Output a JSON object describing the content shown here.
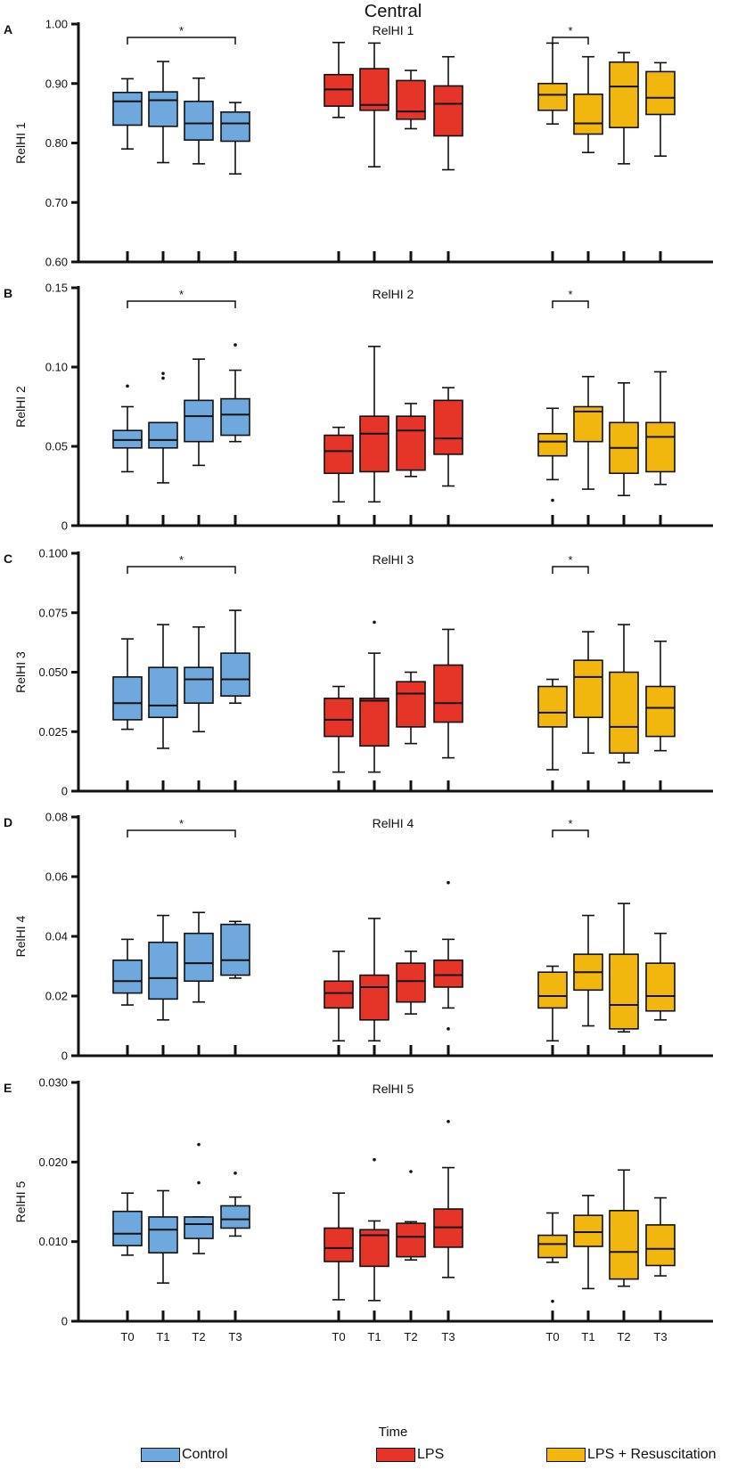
{
  "figure_title": "Central",
  "xlabel": "Time",
  "colors": {
    "control": "#6fa8dc",
    "lps": "#e53529",
    "lps_resus": "#f2b70f",
    "axis": "#111111"
  },
  "legend": [
    {
      "key": "control",
      "label": "Control"
    },
    {
      "key": "lps",
      "label": "LPS"
    },
    {
      "key": "lps_resus",
      "label": "LPS + Resuscitation"
    }
  ],
  "chart_data": [
    {
      "type": "box",
      "panel": "A",
      "title": "RelHI 1",
      "ylabel": "RelHI 1",
      "ylim": [
        0.6,
        1.0
      ],
      "yticks": [
        0.6,
        0.7,
        0.8,
        0.9,
        1.0
      ],
      "ytick_labels": [
        "0.60",
        "0.70",
        "0.80",
        "0.90",
        "1.00"
      ],
      "categories": [
        "T0",
        "T1",
        "T2",
        "T3"
      ],
      "significance": [
        {
          "group": "Control",
          "from": "T0",
          "to": "T3",
          "label": "*"
        },
        {
          "group": "LPS + Resuscitation",
          "from": "T0",
          "to": "T1",
          "label": "*"
        }
      ],
      "groups": [
        {
          "name": "Control",
          "color_key": "control",
          "boxes": [
            {
              "cat": "T0",
              "min": 0.79,
              "q1": 0.83,
              "median": 0.87,
              "q3": 0.885,
              "max": 0.908,
              "outliers": []
            },
            {
              "cat": "T1",
              "min": 0.767,
              "q1": 0.828,
              "median": 0.872,
              "q3": 0.886,
              "max": 0.937,
              "outliers": []
            },
            {
              "cat": "T2",
              "min": 0.765,
              "q1": 0.805,
              "median": 0.833,
              "q3": 0.87,
              "max": 0.909,
              "outliers": []
            },
            {
              "cat": "T3",
              "min": 0.748,
              "q1": 0.803,
              "median": 0.833,
              "q3": 0.852,
              "max": 0.868,
              "outliers": []
            }
          ]
        },
        {
          "name": "LPS",
          "color_key": "lps",
          "boxes": [
            {
              "cat": "T0",
              "min": 0.843,
              "q1": 0.862,
              "median": 0.89,
              "q3": 0.915,
              "max": 0.969,
              "outliers": []
            },
            {
              "cat": "T1",
              "min": 0.76,
              "q1": 0.855,
              "median": 0.864,
              "q3": 0.925,
              "max": 0.968,
              "outliers": []
            },
            {
              "cat": "T2",
              "min": 0.824,
              "q1": 0.84,
              "median": 0.853,
              "q3": 0.905,
              "max": 0.922,
              "outliers": []
            },
            {
              "cat": "T3",
              "min": 0.755,
              "q1": 0.812,
              "median": 0.866,
              "q3": 0.896,
              "max": 0.945,
              "outliers": []
            }
          ]
        },
        {
          "name": "LPS + Resuscitation",
          "color_key": "lps_resus",
          "boxes": [
            {
              "cat": "T0",
              "min": 0.832,
              "q1": 0.855,
              "median": 0.881,
              "q3": 0.9,
              "max": 0.968,
              "outliers": []
            },
            {
              "cat": "T1",
              "min": 0.784,
              "q1": 0.815,
              "median": 0.833,
              "q3": 0.882,
              "max": 0.945,
              "outliers": []
            },
            {
              "cat": "T2",
              "min": 0.765,
              "q1": 0.826,
              "median": 0.895,
              "q3": 0.936,
              "max": 0.952,
              "outliers": []
            },
            {
              "cat": "T3",
              "min": 0.778,
              "q1": 0.848,
              "median": 0.876,
              "q3": 0.92,
              "max": 0.935,
              "outliers": []
            }
          ]
        }
      ]
    },
    {
      "type": "box",
      "panel": "B",
      "title": "RelHI 2",
      "ylabel": "RelHI 2",
      "ylim": [
        0,
        0.15
      ],
      "yticks": [
        0,
        0.05,
        0.1,
        0.15
      ],
      "ytick_labels": [
        "0",
        "0.05",
        "0.10",
        "0.15"
      ],
      "categories": [
        "T0",
        "T1",
        "T2",
        "T3"
      ],
      "significance": [
        {
          "group": "Control",
          "from": "T0",
          "to": "T3",
          "label": "*"
        },
        {
          "group": "LPS + Resuscitation",
          "from": "T0",
          "to": "T1",
          "label": "*"
        }
      ],
      "groups": [
        {
          "name": "Control",
          "color_key": "control",
          "boxes": [
            {
              "cat": "T0",
              "min": 0.034,
              "q1": 0.049,
              "median": 0.054,
              "q3": 0.06,
              "max": 0.075,
              "outliers": [
                0.088
              ]
            },
            {
              "cat": "T1",
              "min": 0.027,
              "q1": 0.049,
              "median": 0.054,
              "q3": 0.065,
              "max": 0.065,
              "outliers": [
                0.093,
                0.096
              ]
            },
            {
              "cat": "T2",
              "min": 0.038,
              "q1": 0.053,
              "median": 0.069,
              "q3": 0.079,
              "max": 0.105,
              "outliers": []
            },
            {
              "cat": "T3",
              "min": 0.053,
              "q1": 0.057,
              "median": 0.07,
              "q3": 0.08,
              "max": 0.098,
              "outliers": [
                0.114
              ]
            }
          ]
        },
        {
          "name": "LPS",
          "color_key": "lps",
          "boxes": [
            {
              "cat": "T0",
              "min": 0.015,
              "q1": 0.033,
              "median": 0.047,
              "q3": 0.057,
              "max": 0.062,
              "outliers": []
            },
            {
              "cat": "T1",
              "min": 0.015,
              "q1": 0.034,
              "median": 0.058,
              "q3": 0.069,
              "max": 0.113,
              "outliers": []
            },
            {
              "cat": "T2",
              "min": 0.031,
              "q1": 0.035,
              "median": 0.06,
              "q3": 0.069,
              "max": 0.077,
              "outliers": []
            },
            {
              "cat": "T3",
              "min": 0.025,
              "q1": 0.045,
              "median": 0.055,
              "q3": 0.079,
              "max": 0.087,
              "outliers": []
            }
          ]
        },
        {
          "name": "LPS + Resuscitation",
          "color_key": "lps_resus",
          "boxes": [
            {
              "cat": "T0",
              "min": 0.029,
              "q1": 0.044,
              "median": 0.053,
              "q3": 0.058,
              "max": 0.074,
              "outliers": [
                0.016
              ]
            },
            {
              "cat": "T1",
              "min": 0.023,
              "q1": 0.053,
              "median": 0.072,
              "q3": 0.075,
              "max": 0.094,
              "outliers": []
            },
            {
              "cat": "T2",
              "min": 0.019,
              "q1": 0.033,
              "median": 0.049,
              "q3": 0.065,
              "max": 0.09,
              "outliers": []
            },
            {
              "cat": "T3",
              "min": 0.026,
              "q1": 0.034,
              "median": 0.056,
              "q3": 0.065,
              "max": 0.097,
              "outliers": []
            }
          ]
        }
      ]
    },
    {
      "type": "box",
      "panel": "C",
      "title": "RelHI 3",
      "ylabel": "RelHI 3",
      "ylim": [
        0,
        0.1
      ],
      "yticks": [
        0,
        0.025,
        0.05,
        0.075,
        0.1
      ],
      "ytick_labels": [
        "0",
        "0.025",
        "0.050",
        "0.075",
        "0.100"
      ],
      "categories": [
        "T0",
        "T1",
        "T2",
        "T3"
      ],
      "significance": [
        {
          "group": "Control",
          "from": "T0",
          "to": "T3",
          "label": "*"
        },
        {
          "group": "LPS + Resuscitation",
          "from": "T0",
          "to": "T1",
          "label": "*"
        }
      ],
      "groups": [
        {
          "name": "Control",
          "color_key": "control",
          "boxes": [
            {
              "cat": "T0",
              "min": 0.026,
              "q1": 0.03,
              "median": 0.037,
              "q3": 0.048,
              "max": 0.064,
              "outliers": []
            },
            {
              "cat": "T1",
              "min": 0.018,
              "q1": 0.031,
              "median": 0.036,
              "q3": 0.052,
              "max": 0.07,
              "outliers": []
            },
            {
              "cat": "T2",
              "min": 0.025,
              "q1": 0.037,
              "median": 0.047,
              "q3": 0.052,
              "max": 0.069,
              "outliers": []
            },
            {
              "cat": "T3",
              "min": 0.037,
              "q1": 0.04,
              "median": 0.047,
              "q3": 0.058,
              "max": 0.076,
              "outliers": []
            }
          ]
        },
        {
          "name": "LPS",
          "color_key": "lps",
          "boxes": [
            {
              "cat": "T0",
              "min": 0.008,
              "q1": 0.023,
              "median": 0.03,
              "q3": 0.039,
              "max": 0.044,
              "outliers": []
            },
            {
              "cat": "T1",
              "min": 0.008,
              "q1": 0.019,
              "median": 0.038,
              "q3": 0.039,
              "max": 0.058,
              "outliers": [
                0.071
              ]
            },
            {
              "cat": "T2",
              "min": 0.02,
              "q1": 0.027,
              "median": 0.041,
              "q3": 0.046,
              "max": 0.05,
              "outliers": []
            },
            {
              "cat": "T3",
              "min": 0.014,
              "q1": 0.029,
              "median": 0.037,
              "q3": 0.053,
              "max": 0.068,
              "outliers": []
            }
          ]
        },
        {
          "name": "LPS + Resuscitation",
          "color_key": "lps_resus",
          "boxes": [
            {
              "cat": "T0",
              "min": 0.009,
              "q1": 0.027,
              "median": 0.033,
              "q3": 0.044,
              "max": 0.047,
              "outliers": []
            },
            {
              "cat": "T1",
              "min": 0.016,
              "q1": 0.031,
              "median": 0.048,
              "q3": 0.055,
              "max": 0.067,
              "outliers": []
            },
            {
              "cat": "T2",
              "min": 0.012,
              "q1": 0.016,
              "median": 0.027,
              "q3": 0.05,
              "max": 0.07,
              "outliers": []
            },
            {
              "cat": "T3",
              "min": 0.017,
              "q1": 0.023,
              "median": 0.035,
              "q3": 0.044,
              "max": 0.063,
              "outliers": []
            }
          ]
        }
      ]
    },
    {
      "type": "box",
      "panel": "D",
      "title": "RelHI 4",
      "ylabel": "RelHI 4",
      "ylim": [
        0,
        0.08
      ],
      "yticks": [
        0,
        0.02,
        0.04,
        0.06,
        0.08
      ],
      "ytick_labels": [
        "0",
        "0.02",
        "0.04",
        "0.06",
        "0.08"
      ],
      "categories": [
        "T0",
        "T1",
        "T2",
        "T3"
      ],
      "significance": [
        {
          "group": "Control",
          "from": "T0",
          "to": "T3",
          "label": "*"
        },
        {
          "group": "LPS + Resuscitation",
          "from": "T0",
          "to": "T1",
          "label": "*"
        }
      ],
      "groups": [
        {
          "name": "Control",
          "color_key": "control",
          "boxes": [
            {
              "cat": "T0",
              "min": 0.017,
              "q1": 0.021,
              "median": 0.025,
              "q3": 0.032,
              "max": 0.039,
              "outliers": []
            },
            {
              "cat": "T1",
              "min": 0.012,
              "q1": 0.019,
              "median": 0.026,
              "q3": 0.038,
              "max": 0.047,
              "outliers": []
            },
            {
              "cat": "T2",
              "min": 0.018,
              "q1": 0.025,
              "median": 0.031,
              "q3": 0.041,
              "max": 0.048,
              "outliers": []
            },
            {
              "cat": "T3",
              "min": 0.026,
              "q1": 0.027,
              "median": 0.032,
              "q3": 0.044,
              "max": 0.045,
              "outliers": []
            }
          ]
        },
        {
          "name": "LPS",
          "color_key": "lps",
          "boxes": [
            {
              "cat": "T0",
              "min": 0.005,
              "q1": 0.016,
              "median": 0.021,
              "q3": 0.025,
              "max": 0.035,
              "outliers": []
            },
            {
              "cat": "T1",
              "min": 0.005,
              "q1": 0.012,
              "median": 0.023,
              "q3": 0.027,
              "max": 0.046,
              "outliers": []
            },
            {
              "cat": "T2",
              "min": 0.014,
              "q1": 0.018,
              "median": 0.025,
              "q3": 0.031,
              "max": 0.035,
              "outliers": []
            },
            {
              "cat": "T3",
              "min": 0.016,
              "q1": 0.023,
              "median": 0.027,
              "q3": 0.032,
              "max": 0.039,
              "outliers": [
                0.058,
                0.009
              ]
            }
          ]
        },
        {
          "name": "LPS + Resuscitation",
          "color_key": "lps_resus",
          "boxes": [
            {
              "cat": "T0",
              "min": 0.005,
              "q1": 0.016,
              "median": 0.02,
              "q3": 0.028,
              "max": 0.03,
              "outliers": []
            },
            {
              "cat": "T1",
              "min": 0.01,
              "q1": 0.022,
              "median": 0.028,
              "q3": 0.034,
              "max": 0.047,
              "outliers": []
            },
            {
              "cat": "T2",
              "min": 0.008,
              "q1": 0.009,
              "median": 0.017,
              "q3": 0.034,
              "max": 0.051,
              "outliers": []
            },
            {
              "cat": "T3",
              "min": 0.012,
              "q1": 0.015,
              "median": 0.02,
              "q3": 0.031,
              "max": 0.041,
              "outliers": []
            }
          ]
        }
      ]
    },
    {
      "type": "box",
      "panel": "E",
      "title": "RelHI 5",
      "ylabel": "RelHI 5",
      "ylim": [
        0,
        0.03
      ],
      "yticks": [
        0,
        0.01,
        0.02,
        0.03
      ],
      "ytick_labels": [
        "0",
        "0.010",
        "0.020",
        "0.030"
      ],
      "categories": [
        "T0",
        "T1",
        "T2",
        "T3"
      ],
      "significance": [],
      "groups": [
        {
          "name": "Control",
          "color_key": "control",
          "boxes": [
            {
              "cat": "T0",
              "min": 0.0083,
              "q1": 0.0095,
              "median": 0.011,
              "q3": 0.0138,
              "max": 0.0161,
              "outliers": []
            },
            {
              "cat": "T1",
              "min": 0.0048,
              "q1": 0.0086,
              "median": 0.0115,
              "q3": 0.0131,
              "max": 0.0164,
              "outliers": []
            },
            {
              "cat": "T2",
              "min": 0.0085,
              "q1": 0.0104,
              "median": 0.0122,
              "q3": 0.0131,
              "max": 0.0131,
              "outliers": [
                0.0222,
                0.0174
              ]
            },
            {
              "cat": "T3",
              "min": 0.0107,
              "q1": 0.0117,
              "median": 0.0128,
              "q3": 0.0145,
              "max": 0.0156,
              "outliers": [
                0.0186
              ]
            }
          ]
        },
        {
          "name": "LPS",
          "color_key": "lps",
          "boxes": [
            {
              "cat": "T0",
              "min": 0.0027,
              "q1": 0.0075,
              "median": 0.0092,
              "q3": 0.0117,
              "max": 0.0161,
              "outliers": []
            },
            {
              "cat": "T1",
              "min": 0.0026,
              "q1": 0.0069,
              "median": 0.0108,
              "q3": 0.0115,
              "max": 0.0126,
              "outliers": [
                0.0203
              ]
            },
            {
              "cat": "T2",
              "min": 0.0077,
              "q1": 0.0081,
              "median": 0.0106,
              "q3": 0.0123,
              "max": 0.0125,
              "outliers": [
                0.0188
              ]
            },
            {
              "cat": "T3",
              "min": 0.0055,
              "q1": 0.0093,
              "median": 0.0118,
              "q3": 0.0141,
              "max": 0.0193,
              "outliers": [
                0.0251
              ]
            }
          ]
        },
        {
          "name": "LPS + Resuscitation",
          "color_key": "lps_resus",
          "boxes": [
            {
              "cat": "T0",
              "min": 0.0074,
              "q1": 0.008,
              "median": 0.0097,
              "q3": 0.0108,
              "max": 0.0136,
              "outliers": [
                0.0025
              ]
            },
            {
              "cat": "T1",
              "min": 0.0041,
              "q1": 0.0094,
              "median": 0.0112,
              "q3": 0.0133,
              "max": 0.0158,
              "outliers": []
            },
            {
              "cat": "T2",
              "min": 0.0044,
              "q1": 0.0053,
              "median": 0.0087,
              "q3": 0.0139,
              "max": 0.019,
              "outliers": []
            },
            {
              "cat": "T3",
              "min": 0.0057,
              "q1": 0.007,
              "median": 0.0091,
              "q3": 0.0121,
              "max": 0.0155,
              "outliers": []
            }
          ]
        }
      ]
    }
  ]
}
